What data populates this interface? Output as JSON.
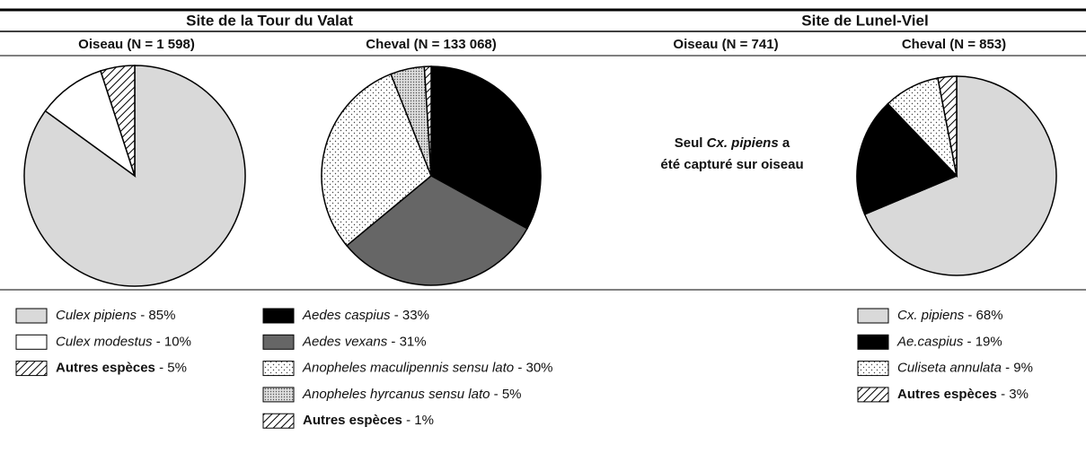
{
  "sites": [
    {
      "title": "Site de la Tour du Valat"
    },
    {
      "title": "Site de Lunel-Viel"
    }
  ],
  "note": {
    "title": "Oiseau (N = 741)",
    "parts": [
      "Seul",
      "Cx. pipiens",
      "a"
    ],
    "line2": "été capturé sur oiseau"
  },
  "legend_separator": "-",
  "chart_data": [
    {
      "type": "pie",
      "title": "Oiseau (N = 1 598)",
      "categories": [
        "Culex pipiens",
        "Culex modestus",
        "Autres espèces"
      ],
      "values": [
        85,
        10,
        5
      ],
      "value_labels": [
        "85%",
        "10%",
        "5%"
      ],
      "colors": [
        "#d9d9d9",
        "#ffffff",
        "hatch"
      ],
      "styles": [
        "italic",
        "italic",
        "bold"
      ]
    },
    {
      "type": "pie",
      "title": "Cheval (N = 133 068)",
      "categories": [
        "Aedes caspius",
        "Aedes vexans",
        "Anopheles maculipennis sensu lato",
        "Anopheles hyrcanus sensu lato",
        "Autres espèces"
      ],
      "values": [
        33,
        31,
        30,
        5,
        1
      ],
      "value_labels": [
        "33%",
        "31%",
        "30%",
        "5%",
        "1%"
      ],
      "colors": [
        "#000000",
        "#666666",
        "dots",
        "densedots",
        "hatch"
      ],
      "styles": [
        "italic",
        "italic",
        "italic",
        "italic",
        "bold"
      ]
    },
    {
      "type": "pie",
      "title": "Cheval (N = 853)",
      "categories": [
        "Cx. pipiens",
        "Ae.caspius",
        "Culiseta annulata",
        "Autres espèces"
      ],
      "values": [
        68,
        19,
        9,
        3
      ],
      "value_labels": [
        "68%",
        "19%",
        "9%",
        "3%"
      ],
      "colors": [
        "#d9d9d9",
        "#000000",
        "dots",
        "hatch"
      ],
      "styles": [
        "italic",
        "italic",
        "italic",
        "bold"
      ]
    }
  ]
}
